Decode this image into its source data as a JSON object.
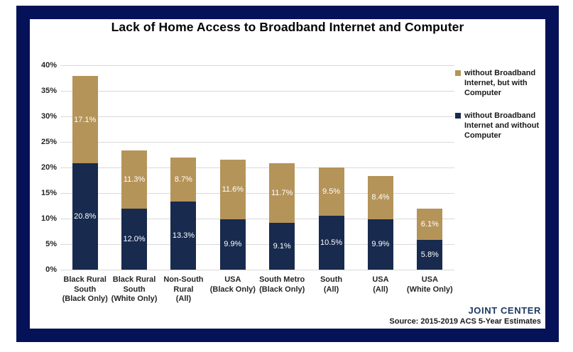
{
  "page": {
    "title": "Lack of Home Access to Broadband Internet and Computer",
    "footer": {
      "brand": "JOINT CENTER",
      "source": "Source: 2015-2019 ACS 5-Year Estimates"
    }
  },
  "colors": {
    "frame_navy": "#061257",
    "bar_navy": "#182a4e",
    "bar_tan": "#b59459",
    "gridline": "#d9d9d9",
    "axis_text": "#262626",
    "brand_text": "#1f3864",
    "data_label": "#ffffff"
  },
  "chart_data": {
    "type": "bar",
    "stacked": true,
    "title": "Lack of Home Access to Broadband Internet and Computer",
    "categories": [
      "Black Rural South (Black Only)",
      "Black Rural South (White Only)",
      "Non-South Rural (All)",
      "USA (Black Only)",
      "South Metro (Black Only)",
      "South (All)",
      "USA (All)",
      "USA (White Only)"
    ],
    "xtick_lines": [
      [
        "Black Rural",
        "South",
        "(Black Only)"
      ],
      [
        "Black Rural",
        "South",
        "(White Only)"
      ],
      [
        "Non-South",
        "Rural",
        "(All)"
      ],
      [
        "USA",
        "(Black Only)"
      ],
      [
        "South Metro",
        "(Black Only)"
      ],
      [
        "South",
        "(All)"
      ],
      [
        "USA",
        "(All)"
      ],
      [
        "USA",
        "(White Only)"
      ]
    ],
    "series": [
      {
        "name": "without Broadband Internet and without Computer",
        "color": "#182a4e",
        "values": [
          20.8,
          12.0,
          13.3,
          9.9,
          9.1,
          10.5,
          9.9,
          5.8
        ]
      },
      {
        "name": "without Broadband Internet, but with Computer",
        "color": "#b59459",
        "values": [
          17.1,
          11.3,
          8.7,
          11.6,
          11.7,
          9.5,
          8.4,
          6.1
        ]
      }
    ],
    "data_label_format": "one_decimal_percent",
    "legend_position": "right",
    "legend": [
      {
        "color": "#b59459",
        "label": "without Broadband Internet, but with Computer",
        "lines": [
          "without Broadband",
          "Internet, but with",
          "Computer"
        ]
      },
      {
        "color": "#182a4e",
        "label": "without Broadband Internet and without Computer",
        "lines": [
          "without Broadband",
          "Internet and without",
          "Computer"
        ]
      }
    ],
    "xlabel": "",
    "ylabel": "",
    "ylim": [
      0,
      40
    ],
    "ytick_step": 5,
    "ytick_format": "integer_percent",
    "grid": true
  }
}
